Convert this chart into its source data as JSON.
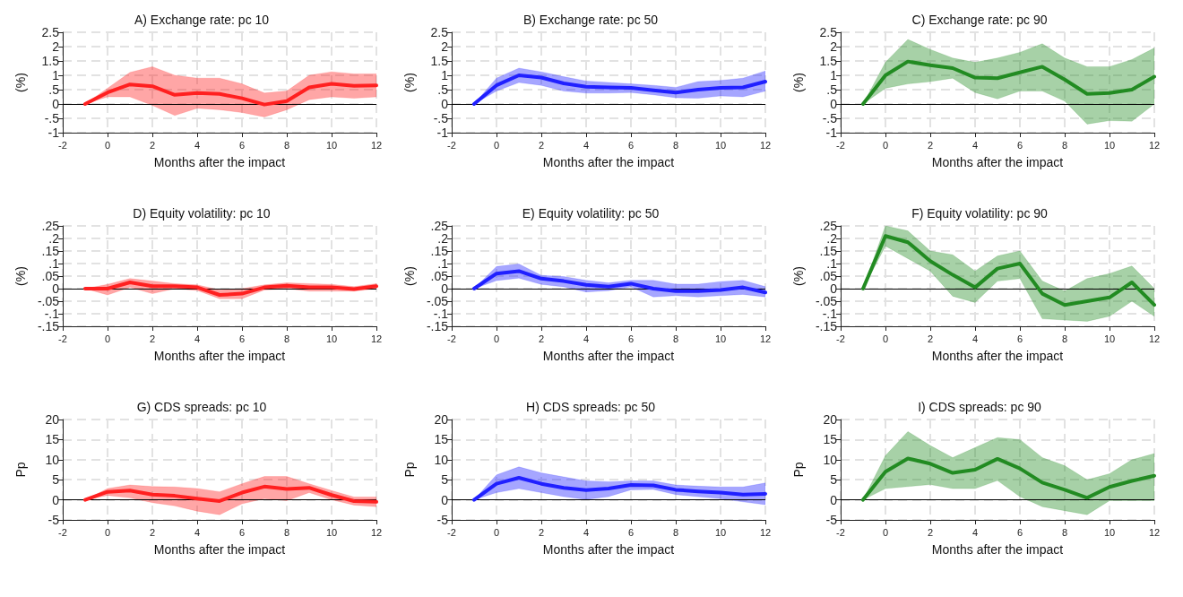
{
  "chart_data": [
    {
      "type": "line",
      "title": "A) Exchange rate: pc 10",
      "xlabel": "Months after the impact",
      "ylabel": "(%)",
      "x": [
        -1,
        0,
        1,
        2,
        3,
        4,
        5,
        6,
        7,
        8,
        9,
        10,
        11,
        12
      ],
      "xlim": [
        -2,
        12
      ],
      "xticks": [
        -2,
        0,
        2,
        4,
        6,
        8,
        10,
        12
      ],
      "ylim": [
        -1,
        2.5
      ],
      "yticks": [
        -1,
        {
          "value": -0.5,
          "label": "-.5"
        },
        0,
        {
          "value": 0.5,
          "label": ".5"
        },
        1,
        1.5,
        2,
        2.5
      ],
      "grid": true,
      "ref_lines": [
        {
          "axis": "y",
          "value": 0
        }
      ],
      "series": [
        {
          "color": "#ff2020",
          "values": [
            0,
            0.4,
            0.68,
            0.62,
            0.32,
            0.38,
            0.35,
            0.2,
            -0.02,
            0.1,
            0.58,
            0.7,
            0.63,
            0.65
          ],
          "lower": [
            0,
            0.25,
            0.25,
            -0.05,
            -0.4,
            -0.15,
            -0.2,
            -0.3,
            -0.45,
            -0.2,
            0.15,
            0.25,
            0.2,
            0.25
          ],
          "upper": [
            0,
            0.55,
            1.1,
            1.3,
            1.0,
            0.9,
            0.9,
            0.7,
            0.38,
            0.45,
            1.0,
            1.12,
            1.05,
            1.05
          ]
        }
      ]
    },
    {
      "type": "line",
      "title": "B) Exchange rate: pc 50",
      "xlabel": "Months after the impact",
      "ylabel": "(%)",
      "x": [
        -1,
        0,
        1,
        2,
        3,
        4,
        5,
        6,
        7,
        8,
        9,
        10,
        11,
        12
      ],
      "xlim": [
        -2,
        12
      ],
      "xticks": [
        -2,
        0,
        2,
        4,
        6,
        8,
        10,
        12
      ],
      "ylim": [
        -1,
        2.5
      ],
      "yticks": [
        -1,
        {
          "value": -0.5,
          "label": "-.5"
        },
        0,
        {
          "value": 0.5,
          "label": ".5"
        },
        1,
        1.5,
        2,
        2.5
      ],
      "grid": true,
      "ref_lines": [
        {
          "axis": "y",
          "value": 0
        }
      ],
      "series": [
        {
          "color": "#2020ff",
          "values": [
            0,
            0.65,
            1.0,
            0.92,
            0.72,
            0.6,
            0.58,
            0.56,
            0.48,
            0.4,
            0.5,
            0.56,
            0.58,
            0.78
          ],
          "lower": [
            0,
            0.45,
            0.75,
            0.65,
            0.45,
            0.38,
            0.38,
            0.4,
            0.32,
            0.22,
            0.2,
            0.28,
            0.25,
            0.45
          ],
          "upper": [
            0,
            0.9,
            1.25,
            1.12,
            0.95,
            0.8,
            0.75,
            0.7,
            0.65,
            0.58,
            0.78,
            0.82,
            0.9,
            1.15
          ]
        }
      ]
    },
    {
      "type": "line",
      "title": "C) Exchange rate: pc 90",
      "xlabel": "Months after the impact",
      "ylabel": "(%)",
      "x": [
        -1,
        0,
        1,
        2,
        3,
        4,
        5,
        6,
        7,
        8,
        9,
        10,
        11,
        12
      ],
      "xlim": [
        -2,
        12
      ],
      "xticks": [
        -2,
        0,
        2,
        4,
        6,
        8,
        10,
        12
      ],
      "ylim": [
        -1,
        2.5
      ],
      "yticks": [
        -1,
        {
          "value": -0.5,
          "label": "-.5"
        },
        0,
        {
          "value": 0.5,
          "label": ".5"
        },
        1,
        1.5,
        2,
        2.5
      ],
      "grid": true,
      "ref_lines": [
        {
          "axis": "y",
          "value": 0
        }
      ],
      "series": [
        {
          "color": "#228b22",
          "values": [
            0,
            1.0,
            1.48,
            1.35,
            1.25,
            0.92,
            0.9,
            1.1,
            1.3,
            0.85,
            0.35,
            0.38,
            0.5,
            0.95
          ],
          "lower": [
            0,
            0.55,
            0.7,
            0.78,
            0.9,
            0.4,
            0.18,
            0.45,
            0.45,
            0.1,
            -0.7,
            -0.58,
            -0.6,
            0.0
          ],
          "upper": [
            0,
            1.45,
            2.25,
            1.9,
            1.6,
            1.45,
            1.6,
            1.8,
            2.1,
            1.6,
            1.3,
            1.3,
            1.55,
            1.95
          ]
        }
      ]
    },
    {
      "type": "line",
      "title": "D) Equity volatility: pc 10",
      "xlabel": "Months after the impact",
      "ylabel": "(%)",
      "x": [
        -1,
        0,
        1,
        2,
        3,
        4,
        5,
        6,
        7,
        8,
        9,
        10,
        11,
        12
      ],
      "xlim": [
        -2,
        12
      ],
      "xticks": [
        -2,
        0,
        2,
        4,
        6,
        8,
        10,
        12
      ],
      "ylim": [
        -0.15,
        0.25
      ],
      "yticks": [
        {
          "value": -0.15,
          "label": "-.15"
        },
        {
          "value": -0.1,
          "label": "-.1"
        },
        {
          "value": -0.05,
          "label": "-.05"
        },
        0,
        {
          "value": 0.05,
          "label": ".05"
        },
        {
          "value": 0.1,
          "label": ".1"
        },
        {
          "value": 0.15,
          "label": ".15"
        },
        {
          "value": 0.2,
          "label": ".2"
        },
        {
          "value": 0.25,
          "label": ".25"
        }
      ],
      "grid": true,
      "ref_lines": [
        {
          "axis": "y",
          "value": 0
        }
      ],
      "series": [
        {
          "color": "#ff2020",
          "values": [
            0,
            0,
            0.025,
            0.01,
            0.01,
            0.005,
            -0.025,
            -0.02,
            0.005,
            0.012,
            0.005,
            0.005,
            -0.002,
            0.01
          ],
          "lower": [
            0,
            -0.025,
            0.005,
            -0.02,
            0,
            -0.007,
            -0.04,
            -0.04,
            -0.005,
            0,
            -0.01,
            -0.01,
            -0.01,
            0
          ],
          "upper": [
            0,
            0.017,
            0.04,
            0.03,
            0.02,
            0.015,
            -0.005,
            0,
            0.015,
            0.023,
            0.02,
            0.017,
            0.008,
            0.02
          ]
        }
      ]
    },
    {
      "type": "line",
      "title": "E) Equity volatility: pc 50",
      "xlabel": "Months after the impact",
      "ylabel": "(%)",
      "x": [
        -1,
        0,
        1,
        2,
        3,
        4,
        5,
        6,
        7,
        8,
        9,
        10,
        11,
        12
      ],
      "xlim": [
        -2,
        12
      ],
      "xticks": [
        -2,
        0,
        2,
        4,
        6,
        8,
        10,
        12
      ],
      "ylim": [
        -0.15,
        0.25
      ],
      "yticks": [
        {
          "value": -0.15,
          "label": "-.15"
        },
        {
          "value": -0.1,
          "label": "-.1"
        },
        {
          "value": -0.05,
          "label": "-.05"
        },
        0,
        {
          "value": 0.05,
          "label": ".05"
        },
        {
          "value": 0.1,
          "label": ".1"
        },
        {
          "value": 0.15,
          "label": ".15"
        },
        {
          "value": 0.2,
          "label": ".2"
        },
        {
          "value": 0.25,
          "label": ".25"
        }
      ],
      "grid": true,
      "ref_lines": [
        {
          "axis": "y",
          "value": 0
        }
      ],
      "series": [
        {
          "color": "#2020ff",
          "values": [
            0,
            0.06,
            0.07,
            0.04,
            0.03,
            0.015,
            0.008,
            0.02,
            0,
            -0.01,
            -0.01,
            -0.005,
            0.005,
            -0.015
          ],
          "lower": [
            0,
            0.032,
            0.042,
            0.017,
            0.007,
            -0.013,
            -0.008,
            0.007,
            -0.033,
            -0.028,
            -0.033,
            -0.028,
            -0.023,
            -0.033
          ],
          "upper": [
            0,
            0.088,
            0.098,
            0.053,
            0.048,
            0.033,
            0.023,
            0.033,
            0.033,
            0.018,
            0.018,
            0.028,
            0.033,
            0.008
          ]
        }
      ]
    },
    {
      "type": "line",
      "title": "F) Equity volatility: pc 90",
      "xlabel": "Months after the impact",
      "ylabel": "(%)",
      "x": [
        -1,
        0,
        1,
        2,
        3,
        4,
        5,
        6,
        7,
        8,
        9,
        10,
        11,
        12
      ],
      "xlim": [
        -2,
        12
      ],
      "xticks": [
        -2,
        0,
        2,
        4,
        6,
        8,
        10,
        12
      ],
      "ylim": [
        -0.15,
        0.25
      ],
      "yticks": [
        {
          "value": -0.15,
          "label": "-.15"
        },
        {
          "value": -0.1,
          "label": "-.1"
        },
        {
          "value": -0.05,
          "label": "-.05"
        },
        0,
        {
          "value": 0.05,
          "label": ".05"
        },
        {
          "value": 0.1,
          "label": ".1"
        },
        {
          "value": 0.15,
          "label": ".15"
        },
        {
          "value": 0.2,
          "label": ".2"
        },
        {
          "value": 0.25,
          "label": ".25"
        }
      ],
      "grid": true,
      "ref_lines": [
        {
          "axis": "y",
          "value": 0
        }
      ],
      "series": [
        {
          "color": "#228b22",
          "values": [
            0,
            0.21,
            0.185,
            0.11,
            0.055,
            0.005,
            0.08,
            0.1,
            -0.02,
            -0.065,
            -0.05,
            -0.035,
            0.025,
            -0.065
          ],
          "lower": [
            0,
            0.17,
            0.12,
            0.07,
            -0.03,
            -0.055,
            0.03,
            0.04,
            -0.12,
            -0.125,
            -0.13,
            -0.11,
            -0.05,
            -0.11
          ],
          "upper": [
            0,
            0.25,
            0.23,
            0.15,
            0.135,
            0.07,
            0.13,
            0.15,
            0.03,
            -0.01,
            0.04,
            0.06,
            0.09,
            0
          ]
        }
      ]
    },
    {
      "type": "line",
      "title": "G) CDS spreads: pc 10",
      "xlabel": "Months after the impact",
      "ylabel": "Pp",
      "x": [
        -1,
        0,
        1,
        2,
        3,
        4,
        5,
        6,
        7,
        8,
        9,
        10,
        11,
        12
      ],
      "xlim": [
        -2,
        12
      ],
      "xticks": [
        -2,
        0,
        2,
        4,
        6,
        8,
        10,
        12
      ],
      "ylim": [
        -5,
        20
      ],
      "yticks": [
        -5,
        0,
        5,
        10,
        15,
        20
      ],
      "grid": true,
      "ref_lines": [
        {
          "axis": "y",
          "value": 0
        }
      ],
      "series": [
        {
          "color": "#ff2020",
          "values": [
            0,
            2,
            2.3,
            1.3,
            1,
            0.3,
            -0.3,
            1.8,
            3.3,
            2.7,
            3,
            1.2,
            -0.3,
            -0.5
          ],
          "lower": [
            0,
            1.1,
            0.5,
            -0.7,
            -1.5,
            -2.8,
            -3.7,
            -1,
            0.3,
            -0.2,
            1.8,
            0,
            -1.3,
            -1.7
          ],
          "upper": [
            0,
            2.8,
            3.7,
            3.3,
            3.2,
            2.8,
            2,
            4,
            5.8,
            5.8,
            4,
            2.3,
            0.7,
            0.7
          ]
        }
      ]
    },
    {
      "type": "line",
      "title": "H) CDS spreads: pc 50",
      "xlabel": "Months after the impact",
      "ylabel": "Pp",
      "x": [
        -1,
        0,
        1,
        2,
        3,
        4,
        5,
        6,
        7,
        8,
        9,
        10,
        11,
        12
      ],
      "xlim": [
        -2,
        12
      ],
      "xticks": [
        -2,
        0,
        2,
        4,
        6,
        8,
        10,
        12
      ],
      "ylim": [
        -5,
        20
      ],
      "yticks": [
        -5,
        0,
        5,
        10,
        15,
        20
      ],
      "grid": true,
      "ref_lines": [
        {
          "axis": "y",
          "value": 0
        }
      ],
      "series": [
        {
          "color": "#2020ff",
          "values": [
            0,
            4,
            5.5,
            4,
            3,
            2.4,
            2.8,
            3.7,
            3.6,
            2.5,
            2.1,
            1.8,
            1.3,
            1.5
          ],
          "lower": [
            0,
            1.8,
            2.8,
            1.8,
            0.8,
            0.1,
            0.8,
            2.5,
            2.6,
            1.3,
            0.8,
            0.3,
            -0.5,
            -1.2
          ],
          "upper": [
            0,
            6.2,
            8.2,
            6.7,
            5.7,
            4.7,
            4.5,
            4.7,
            4.7,
            3.7,
            3.4,
            3.2,
            3.2,
            4.2
          ]
        }
      ]
    },
    {
      "type": "line",
      "title": "I) CDS spreads: pc 90",
      "xlabel": "Months after the impact",
      "ylabel": "Pp",
      "x": [
        -1,
        0,
        1,
        2,
        3,
        4,
        5,
        6,
        7,
        8,
        9,
        10,
        11,
        12
      ],
      "xlim": [
        -2,
        12
      ],
      "xticks": [
        -2,
        0,
        2,
        4,
        6,
        8,
        10,
        12
      ],
      "ylim": [
        -5,
        20
      ],
      "yticks": [
        -5,
        0,
        5,
        10,
        15,
        20
      ],
      "grid": true,
      "ref_lines": [
        {
          "axis": "y",
          "value": 0
        }
      ],
      "series": [
        {
          "color": "#228b22",
          "values": [
            0,
            7,
            10.3,
            9,
            6.7,
            7.5,
            10.2,
            7.8,
            4.3,
            2.5,
            0.5,
            3.2,
            4.7,
            6
          ],
          "lower": [
            0,
            2.8,
            3.3,
            3.8,
            2.8,
            2.8,
            4.8,
            0.8,
            -1.7,
            -2.7,
            -3.7,
            -0.2,
            -0.2,
            -0.2
          ],
          "upper": [
            0,
            11,
            17,
            13.5,
            10.5,
            13,
            15.5,
            15,
            10.5,
            8.5,
            5,
            6.5,
            10,
            11.5
          ]
        }
      ]
    }
  ]
}
